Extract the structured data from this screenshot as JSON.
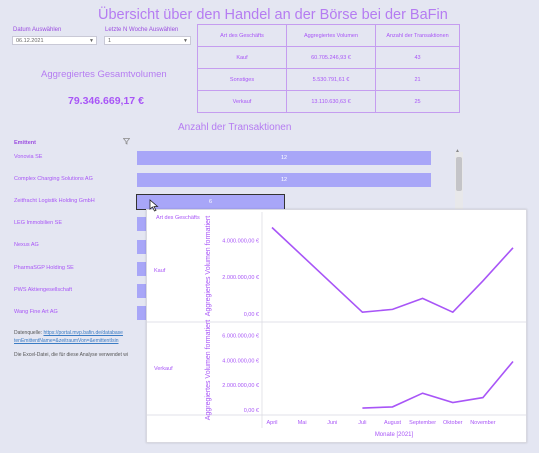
{
  "page": {
    "title": "Übersicht über den Handel an der Börse bei der BaFin"
  },
  "filters": {
    "date_label": "Datum Auswählen",
    "date_value": "06.12.2021",
    "weeks_label": "Letzte N Woche Auswählen",
    "weeks_value": "1"
  },
  "aggregate": {
    "label": "Aggregiertes Gesamtvolumen",
    "value": "79.346.669,17 €"
  },
  "summary_table": {
    "headers": [
      "Art des Geschäfts",
      "Aggregiertes Volumen",
      "Anzahl der Transaktionen"
    ],
    "rows": [
      [
        "Kauf",
        "60.705.246,93 €",
        "43"
      ],
      [
        "Sonstiges",
        "5.530.791,61 €",
        "21"
      ],
      [
        "Verkauf",
        "13.110.630,63 €",
        "25"
      ]
    ]
  },
  "transactions": {
    "title": "Anzahl der Transaktionen",
    "column_header": "Emittent",
    "rows": [
      {
        "name": "Vonovia SE",
        "count": 12,
        "label": "12"
      },
      {
        "name": "Complex Charging Solutions AG",
        "count": 12,
        "label": "12"
      },
      {
        "name": "Zeitfracht Logistik Holding GmbH",
        "count": 6,
        "label": "6"
      },
      {
        "name": "LEG Immobilien SE",
        "count": null,
        "label": ""
      },
      {
        "name": "Nexus AG",
        "count": null,
        "label": ""
      },
      {
        "name": "PharmaSGP Holding SE",
        "count": null,
        "label": ""
      },
      {
        "name": "PWS Aktiengesellschaft",
        "count": null,
        "label": ""
      },
      {
        "name": "Wang Fine Art AG",
        "count": null,
        "label": ""
      }
    ],
    "axis_max": 12
  },
  "footer": {
    "datenquelle_label": "Datenquelle:",
    "datenquelle_url": "https://portal.mvp.bafin.de/database",
    "datenquelle_url2": "tenEmittentName=&zeitraumVon=&emittentIsin",
    "excel_note": "Die Excel-Datei, die für diese Analyse verwendet wi"
  },
  "colors": {
    "accent": "#a855f7",
    "bar": "#a8a6f8",
    "line": "#a855f7"
  },
  "chart_data": {
    "type": "line",
    "row_header": "Art des Geschäfts",
    "xlabel": "Monate [2021]",
    "ylabel": "Aggregiertes Volumen formatiert",
    "x_tick_labels": [
      "April",
      "Mai",
      "Juni",
      "Juli",
      "August",
      "September",
      "Oktober",
      "November"
    ],
    "ylim": [
      0,
      6000000
    ],
    "panels": [
      {
        "name": "Kauf",
        "y_tick_labels": [
          "0,00 €",
          "2.000.000,00 €",
          "4.000.000,00 €"
        ],
        "y_ticks": [
          0,
          2000000,
          4000000
        ],
        "ylim": [
          0,
          5000000
        ],
        "x": [
          "April",
          "Juli",
          "August",
          "September",
          "Oktober",
          "November",
          "Dezember"
        ],
        "values": [
          4700000,
          100000,
          250000,
          850000,
          100000,
          1800000,
          3600000
        ]
      },
      {
        "name": "Verkauf",
        "y_tick_labels": [
          "0,00 €",
          "2.000.000,00 €",
          "4.000.000,00 €",
          "6.000.000,00 €"
        ],
        "y_ticks": [
          0,
          2000000,
          4000000,
          6000000
        ],
        "ylim": [
          0,
          6600000
        ],
        "x": [
          "Juli",
          "August",
          "September",
          "Oktober",
          "November",
          "Dezember"
        ],
        "values": [
          150000,
          250000,
          1350000,
          600000,
          1000000,
          3900000
        ]
      }
    ]
  }
}
